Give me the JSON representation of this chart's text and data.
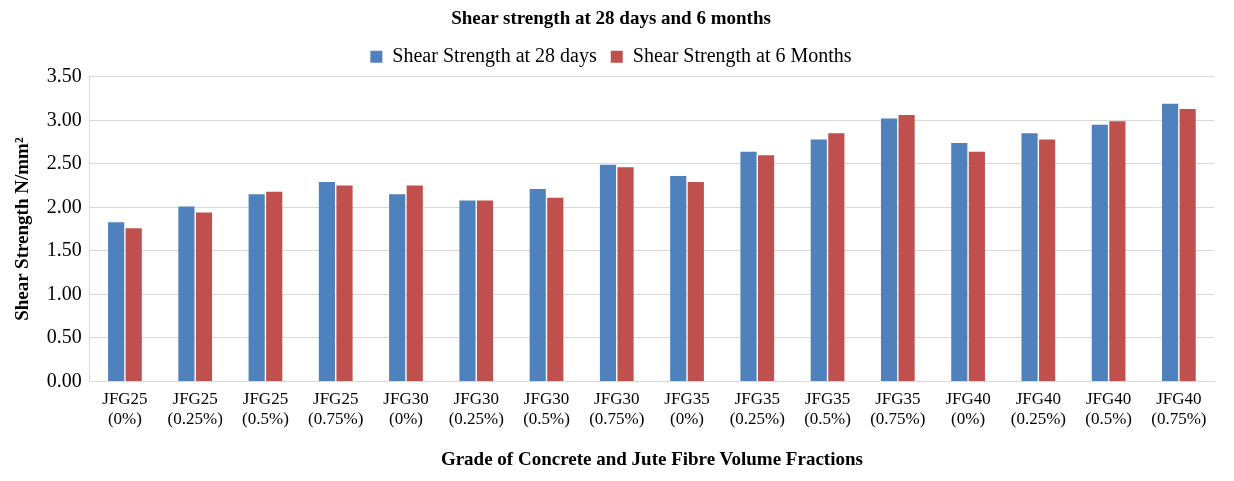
{
  "chart_data": {
    "type": "bar",
    "title": "Shear strength at 28 days and 6 months",
    "xlabel": "Grade of Concrete and Jute Fibre Volume Fractions",
    "ylabel": "Shear Strength N/mm²",
    "categories": [
      "JFG25 (0%)",
      "JFG25 (0.25%)",
      "JFG25 (0.5%)",
      "JFG25 (0.75%)",
      "JFG30 (0%)",
      "JFG30 (0.25%)",
      "JFG30 (0.5%)",
      "JFG30 (0.75%)",
      "JFG35 (0%)",
      "JFG35 (0.25%)",
      "JFG35 (0.5%)",
      "JFG35 (0.75%)",
      "JFG40 (0%)",
      "JFG40 (0.25%)",
      "JFG40 (0.5%)",
      "JFG40 (0.75%)"
    ],
    "series": [
      {
        "name": "Shear Strength at 28 days",
        "color": "#4f81bd",
        "values": [
          1.83,
          2.01,
          2.15,
          2.29,
          2.15,
          2.08,
          2.21,
          2.49,
          2.36,
          2.64,
          2.78,
          3.02,
          2.74,
          2.85,
          2.95,
          3.19
        ]
      },
      {
        "name": "Shear Strength at 6 Months",
        "color": "#c0504d",
        "values": [
          1.76,
          1.94,
          2.18,
          2.25,
          2.25,
          2.08,
          2.11,
          2.46,
          2.29,
          2.6,
          2.85,
          3.06,
          2.64,
          2.78,
          2.99,
          3.13
        ]
      }
    ],
    "ylim": [
      0,
      3.5
    ],
    "yticks": [
      {
        "value": 0,
        "label": "0.00"
      },
      {
        "value": 0.5,
        "label": "0.50"
      },
      {
        "value": 1,
        "label": "1.00"
      },
      {
        "value": 1.5,
        "label": "1.50"
      },
      {
        "value": 2,
        "label": "2.00"
      },
      {
        "value": 2.5,
        "label": "2.50"
      },
      {
        "value": 3,
        "label": "3.00"
      },
      {
        "value": 3.5,
        "label": "3.50"
      }
    ],
    "grid": "y",
    "legend": "top"
  }
}
